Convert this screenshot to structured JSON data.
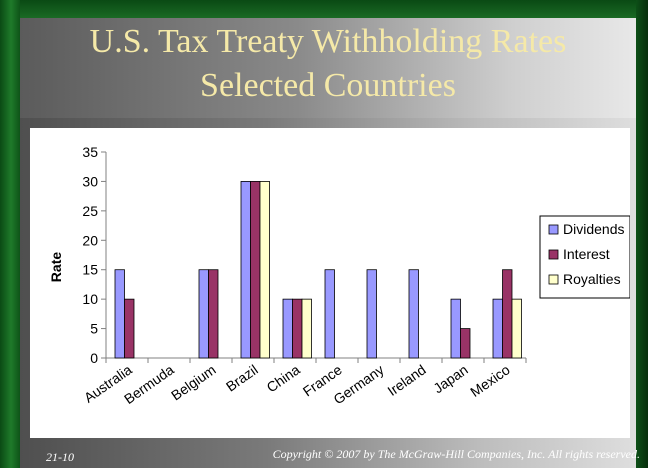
{
  "title": {
    "line1": "U.S. Tax Treaty Withholding Rates",
    "line2": "Selected Countries"
  },
  "footer": {
    "slide_number": "21-10",
    "copyright": "Copyright © 2007 by The McGraw-Hill Companies, Inc.  All rights reserved."
  },
  "colors": {
    "title_text": "#f5e9a8",
    "dividends": "#9999ff",
    "interest": "#993366",
    "royalties": "#ffffcc"
  },
  "chart_data": {
    "type": "bar",
    "title": "",
    "xlabel": "",
    "ylabel": "Rate",
    "ylim": [
      0,
      35
    ],
    "yticks": [
      0,
      5,
      10,
      15,
      20,
      25,
      30,
      35
    ],
    "grid": false,
    "legend_position": "right",
    "categories": [
      "Australia",
      "Bermuda",
      "Belgium",
      "Brazil",
      "China",
      "France",
      "Germany",
      "Ireland",
      "Japan",
      "Mexico"
    ],
    "series": [
      {
        "name": "Dividends",
        "values": [
          15,
          0,
          15,
          30,
          10,
          15,
          15,
          15,
          10,
          10
        ]
      },
      {
        "name": "Interest",
        "values": [
          10,
          0,
          15,
          30,
          10,
          0,
          0,
          0,
          5,
          15
        ]
      },
      {
        "name": "Royalties",
        "values": [
          0,
          0,
          0,
          30,
          10,
          0,
          0,
          0,
          0,
          10
        ]
      }
    ]
  }
}
